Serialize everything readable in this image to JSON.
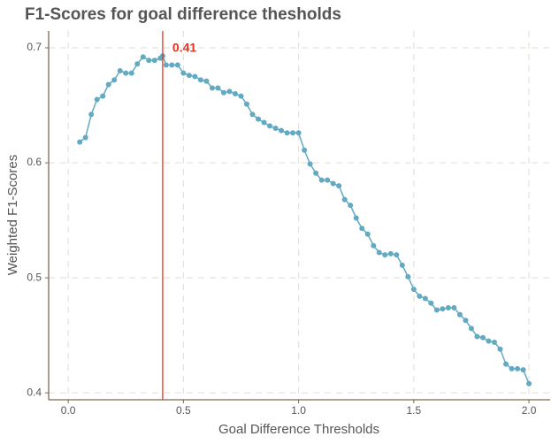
{
  "chart_data": {
    "type": "scatter-line",
    "title": "F1-Scores for goal difference thesholds",
    "x_label": "Goal Difference Thresholds",
    "y_label": "Weighted F1-Scores",
    "color": "#62a9c2",
    "vline": 0.41,
    "vline_color": "#e8321e",
    "grid": true,
    "xlim": [
      -0.085,
      2.092
    ],
    "ylim": [
      0.394,
      0.7146
    ],
    "xticks": [
      {
        "value": 0,
        "label": "0.0"
      },
      {
        "value": 0.5,
        "label": "0.5"
      },
      {
        "value": 1,
        "label": "1.0"
      },
      {
        "value": 1.5,
        "label": "1.5"
      },
      {
        "value": 2,
        "label": "2.0"
      }
    ],
    "yticks": [
      0.4,
      0.5,
      0.6,
      0.7
    ],
    "x": [
      0.05,
      0.075,
      0.1,
      0.125,
      0.15,
      0.175,
      0.2,
      0.225,
      0.25,
      0.275,
      0.3,
      0.325,
      0.35,
      0.375,
      0.4,
      0.41,
      0.425,
      0.45,
      0.475,
      0.5,
      0.525,
      0.55,
      0.575,
      0.6,
      0.625,
      0.65,
      0.675,
      0.7,
      0.725,
      0.75,
      0.775,
      0.8,
      0.825,
      0.85,
      0.875,
      0.9,
      0.925,
      0.95,
      0.975,
      1.0,
      1.025,
      1.05,
      1.075,
      1.1,
      1.125,
      1.15,
      1.175,
      1.2,
      1.225,
      1.25,
      1.275,
      1.3,
      1.325,
      1.35,
      1.375,
      1.4,
      1.425,
      1.45,
      1.475,
      1.5,
      1.525,
      1.55,
      1.575,
      1.6,
      1.625,
      1.65,
      1.675,
      1.7,
      1.725,
      1.75,
      1.775,
      1.8,
      1.825,
      1.85,
      1.875,
      1.9,
      1.925,
      1.95,
      1.975,
      2.0
    ],
    "values": [
      0.618,
      0.622,
      0.642,
      0.655,
      0.658,
      0.668,
      0.672,
      0.68,
      0.678,
      0.678,
      0.686,
      0.692,
      0.689,
      0.689,
      0.691,
      0.693,
      0.685,
      0.685,
      0.685,
      0.678,
      0.676,
      0.675,
      0.672,
      0.671,
      0.665,
      0.665,
      0.661,
      0.662,
      0.66,
      0.658,
      0.651,
      0.642,
      0.638,
      0.635,
      0.632,
      0.63,
      0.628,
      0.626,
      0.626,
      0.626,
      0.611,
      0.599,
      0.591,
      0.585,
      0.585,
      0.582,
      0.58,
      0.568,
      0.563,
      0.552,
      0.543,
      0.538,
      0.528,
      0.522,
      0.52,
      0.521,
      0.52,
      0.511,
      0.501,
      0.49,
      0.484,
      0.482,
      0.478,
      0.472,
      0.473,
      0.474,
      0.474,
      0.468,
      0.463,
      0.456,
      0.449,
      0.448,
      0.445,
      0.444,
      0.438,
      0.425,
      0.421,
      0.421,
      0.42,
      0.408
    ]
  }
}
